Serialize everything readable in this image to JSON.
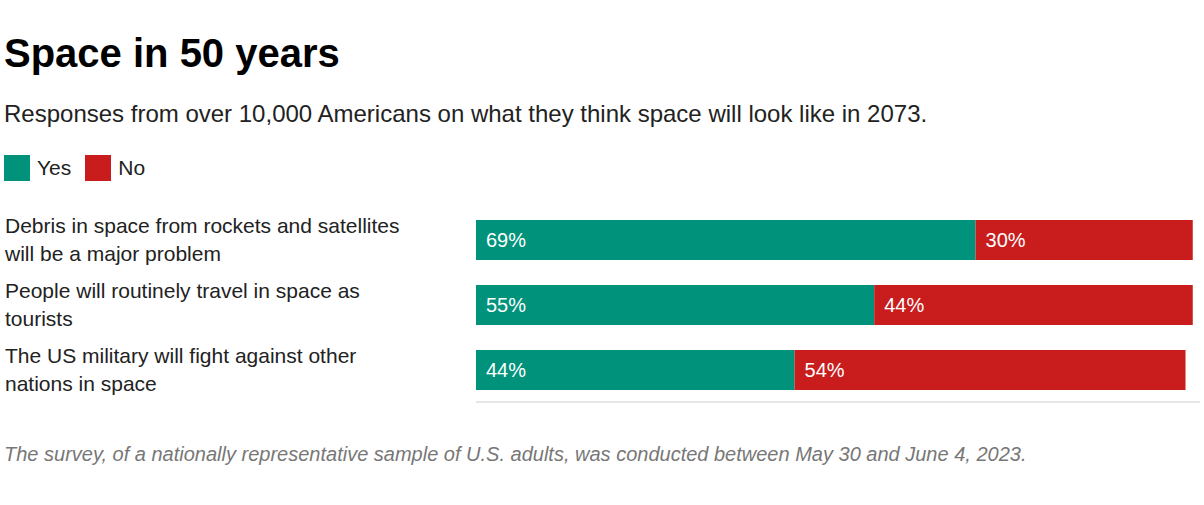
{
  "chart_data": {
    "type": "bar",
    "orientation": "horizontal",
    "stacked": true,
    "title": "Space in 50 years",
    "subtitle": "Responses from over 10,000 Americans on what they think space will look like in 2073.",
    "caption": "The survey, of a nationally representative sample of U.S. adults, was conducted between May 30 and June 4, 2023.",
    "categories": [
      "Debris in space from rockets and satellites will be a major problem",
      "People will routinely travel in space as tourists",
      "The US military will fight against other nations in space"
    ],
    "series": [
      {
        "name": "Yes",
        "color": "#00927a",
        "values": [
          69,
          55,
          44
        ],
        "value_labels": [
          "69%",
          "55%",
          "44%"
        ]
      },
      {
        "name": "No",
        "color": "#c91d1d",
        "values": [
          30,
          44,
          54
        ],
        "value_labels": [
          "30%",
          "44%",
          "54%"
        ]
      }
    ],
    "xlim": [
      0,
      100
    ],
    "xticks": [],
    "grid": false,
    "legend": "top left",
    "data_labels": true,
    "tick_labels": "y"
  }
}
